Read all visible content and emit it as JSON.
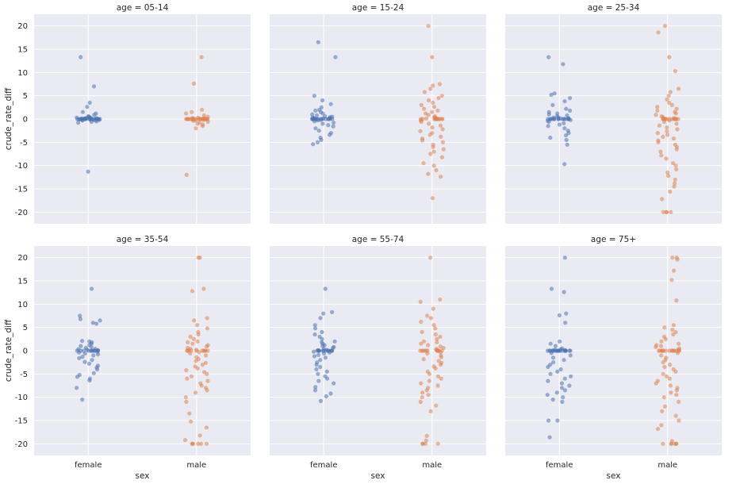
{
  "chart_data": {
    "type": "scatter",
    "subtype": "strip",
    "layout": {
      "rows": 2,
      "cols": 3,
      "sharex": true,
      "sharey": true
    },
    "xlabel": "sex",
    "ylabel": "crude_rate_diff",
    "categories": [
      "female",
      "male"
    ],
    "ylim": [
      -22.5,
      22.5
    ],
    "yticks": [
      "-20",
      "-15",
      "-10",
      "-5",
      "0",
      "5",
      "10",
      "15",
      "20"
    ],
    "grid": true,
    "series_colors": {
      "female": "#4c72b0",
      "male": "#dd8452"
    },
    "facets": [
      {
        "title": "age = 05-14",
        "female": [
          13.3,
          7.0,
          3.5,
          2.6,
          1.5,
          1.2,
          0.9,
          0.6,
          0.5,
          0.4,
          0.3,
          0.3,
          0.2,
          0.2,
          0.2,
          0.1,
          0.1,
          0.1,
          0.0,
          0.0,
          0.0,
          0.0,
          0.0,
          0.0,
          0.0,
          0.0,
          0.0,
          0.0,
          0.0,
          0.0,
          0.0,
          0.0,
          0.0,
          0.0,
          -0.1,
          -0.1,
          -0.1,
          -0.2,
          -0.2,
          -0.3,
          -0.3,
          -0.5,
          -0.6,
          -0.8,
          -11.3
        ],
        "male": [
          13.3,
          7.6,
          2.0,
          1.5,
          1.2,
          0.8,
          0.5,
          0.3,
          0.2,
          0.1,
          0.1,
          0.0,
          0.0,
          0.0,
          0.0,
          0.0,
          0.0,
          0.0,
          0.0,
          0.0,
          0.0,
          0.0,
          0.0,
          0.0,
          0.0,
          0.0,
          0.0,
          0.0,
          0.0,
          0.0,
          0.0,
          -0.1,
          -0.2,
          -0.3,
          -0.4,
          -0.6,
          -0.8,
          -1.0,
          -1.2,
          -1.5,
          -2.0,
          -12.0
        ]
      },
      {
        "title": "age = 15-24",
        "female": [
          16.5,
          13.3,
          5.0,
          4.0,
          3.2,
          2.5,
          2.0,
          1.8,
          1.5,
          1.2,
          1.0,
          0.8,
          0.6,
          0.5,
          0.4,
          0.3,
          0.2,
          0.2,
          0.1,
          0.0,
          0.0,
          0.0,
          0.0,
          0.0,
          0.0,
          0.0,
          0.0,
          0.0,
          0.0,
          0.0,
          0.0,
          0.0,
          0.0,
          0.0,
          0.0,
          -0.2,
          -0.3,
          -0.5,
          -0.8,
          -1.0,
          -1.3,
          -1.6,
          -2.0,
          -2.5,
          -3.0,
          -3.4,
          -4.0,
          -4.5,
          -5.0,
          -5.4
        ],
        "male": [
          20.0,
          13.3,
          7.5,
          7.2,
          6.5,
          5.8,
          5.0,
          4.5,
          4.0,
          3.5,
          3.0,
          2.6,
          2.2,
          1.8,
          1.5,
          1.2,
          0.9,
          0.6,
          0.4,
          0.2,
          0.1,
          0.0,
          0.0,
          0.0,
          0.0,
          0.0,
          0.0,
          0.0,
          0.0,
          0.0,
          0.0,
          0.0,
          0.0,
          -0.3,
          -0.6,
          -1.0,
          -1.4,
          -1.8,
          -2.2,
          -2.6,
          -3.0,
          -3.4,
          -3.8,
          -4.2,
          -4.6,
          -5.0,
          -5.5,
          -6.0,
          -6.5,
          -7.0,
          -7.5,
          -8.2,
          -9.5,
          -10.0,
          -11.0,
          -11.8,
          -12.4,
          -17.0
        ]
      },
      {
        "title": "age = 25-34",
        "female": [
          13.3,
          11.8,
          5.5,
          5.2,
          4.5,
          3.8,
          3.0,
          2.2,
          1.8,
          1.5,
          1.2,
          1.0,
          0.8,
          0.6,
          0.4,
          0.3,
          0.2,
          0.1,
          0.0,
          0.0,
          0.0,
          0.0,
          0.0,
          0.0,
          0.0,
          0.0,
          0.0,
          0.0,
          0.0,
          0.0,
          0.0,
          0.0,
          -0.2,
          -0.4,
          -0.6,
          -0.9,
          -1.2,
          -1.5,
          -2.0,
          -2.5,
          -3.0,
          -3.5,
          -4.0,
          -4.5,
          -5.5,
          -9.7
        ],
        "male": [
          20.0,
          18.6,
          13.3,
          10.3,
          6.5,
          5.8,
          5.0,
          4.2,
          3.5,
          3.0,
          2.6,
          2.2,
          1.8,
          1.5,
          1.2,
          0.9,
          0.6,
          0.4,
          0.2,
          0.0,
          0.0,
          0.0,
          0.0,
          0.0,
          0.0,
          0.0,
          0.0,
          0.0,
          0.0,
          0.0,
          0.0,
          0.0,
          -0.3,
          -0.6,
          -1.0,
          -1.4,
          -1.8,
          -2.2,
          -2.6,
          -3.0,
          -3.4,
          -3.8,
          -4.2,
          -4.6,
          -5.0,
          -5.5,
          -6.0,
          -6.5,
          -7.0,
          -7.8,
          -8.5,
          -9.5,
          -10.0,
          -10.8,
          -11.5,
          -12.2,
          -13.0,
          -13.8,
          -14.5,
          -15.6,
          -17.2,
          -20.0,
          -20.0,
          -20.0,
          -20.0
        ]
      },
      {
        "title": "age = 35-54",
        "female": [
          13.3,
          7.5,
          6.8,
          6.5,
          6.0,
          5.8,
          2.1,
          2.0,
          1.8,
          1.5,
          1.2,
          1.0,
          0.8,
          0.6,
          0.4,
          0.3,
          0.2,
          0.1,
          0.0,
          0.0,
          0.0,
          0.0,
          0.0,
          0.0,
          0.0,
          0.0,
          0.0,
          0.0,
          0.0,
          -0.2,
          -0.4,
          -0.6,
          -0.8,
          -1.0,
          -1.3,
          -1.6,
          -2.0,
          -2.4,
          -2.8,
          -3.2,
          -3.6,
          -4.0,
          -4.8,
          -5.2,
          -5.6,
          -6.0,
          -6.4,
          -8.0,
          -10.5
        ],
        "male": [
          20.0,
          20.0,
          13.3,
          12.8,
          7.0,
          6.5,
          5.5,
          4.8,
          4.0,
          3.5,
          3.0,
          2.5,
          2.0,
          1.8,
          1.5,
          1.2,
          0.9,
          0.6,
          0.4,
          0.2,
          0.0,
          0.0,
          0.0,
          0.0,
          0.0,
          0.0,
          0.0,
          0.0,
          0.0,
          0.0,
          -0.3,
          -0.6,
          -1.0,
          -1.4,
          -1.8,
          -2.2,
          -2.6,
          -3.0,
          -3.4,
          -3.8,
          -4.2,
          -4.6,
          -5.0,
          -5.5,
          -6.0,
          -6.5,
          -7.0,
          -7.5,
          -8.0,
          -8.5,
          -9.0,
          -10.0,
          -11.0,
          -13.5,
          -15.2,
          -16.5,
          -18.2,
          -19.2,
          -20.0,
          -20.0,
          -20.0,
          -20.0,
          -20.0,
          -20.0
        ]
      },
      {
        "title": "age = 55-74",
        "female": [
          13.3,
          8.3,
          8.0,
          7.0,
          5.5,
          4.8,
          4.0,
          3.5,
          3.0,
          2.5,
          2.0,
          1.8,
          1.5,
          1.2,
          1.0,
          0.8,
          0.6,
          0.4,
          0.2,
          0.1,
          0.0,
          0.0,
          0.0,
          0.0,
          0.0,
          0.0,
          0.0,
          0.0,
          0.0,
          0.0,
          0.0,
          0.0,
          0.0,
          -0.2,
          -0.4,
          -0.6,
          -0.9,
          -1.2,
          -1.5,
          -2.0,
          -2.5,
          -3.0,
          -3.5,
          -4.0,
          -4.5,
          -5.0,
          -5.5,
          -6.0,
          -6.5,
          -7.0,
          -7.8,
          -8.5,
          -9.2,
          -9.8,
          -10.8
        ],
        "male": [
          20.0,
          11.0,
          10.5,
          9.0,
          7.5,
          7.0,
          6.2,
          5.5,
          4.8,
          4.0,
          3.5,
          3.0,
          2.5,
          2.0,
          1.8,
          1.5,
          1.2,
          0.9,
          0.6,
          0.4,
          0.2,
          0.0,
          0.0,
          0.0,
          0.0,
          0.0,
          0.0,
          0.0,
          0.0,
          0.0,
          0.0,
          0.0,
          0.0,
          -0.3,
          -0.6,
          -1.0,
          -1.4,
          -1.8,
          -2.2,
          -2.6,
          -3.0,
          -3.4,
          -3.8,
          -4.5,
          -5.0,
          -5.5,
          -6.0,
          -6.5,
          -7.0,
          -7.5,
          -8.0,
          -8.5,
          -9.0,
          -9.5,
          -10.0,
          -11.0,
          -11.8,
          -13.0,
          -18.3,
          -19.3,
          -20.0,
          -20.0,
          -20.0,
          -20.0
        ]
      },
      {
        "title": "age = 75+",
        "female": [
          20.0,
          13.3,
          12.6,
          8.0,
          7.6,
          6.0,
          2.0,
          1.5,
          1.0,
          0.5,
          0.3,
          0.2,
          0.1,
          0.0,
          0.0,
          0.0,
          0.0,
          0.0,
          0.0,
          0.0,
          0.0,
          0.0,
          0.0,
          0.0,
          0.0,
          0.0,
          0.0,
          0.0,
          0.0,
          0.0,
          0.0,
          0.0,
          -0.5,
          -1.0,
          -1.5,
          -2.0,
          -2.5,
          -3.0,
          -3.5,
          -4.0,
          -4.5,
          -5.0,
          -5.5,
          -6.0,
          -6.5,
          -7.0,
          -7.5,
          -8.0,
          -8.5,
          -9.0,
          -9.5,
          -10.0,
          -10.5,
          -11.0,
          -15.0,
          -15.0,
          -18.6
        ],
        "male": [
          20.0,
          20.0,
          19.6,
          17.2,
          15.2,
          10.8,
          5.5,
          5.0,
          4.5,
          4.0,
          3.5,
          3.0,
          2.5,
          2.0,
          1.5,
          1.2,
          1.0,
          0.8,
          0.5,
          0.2,
          0.0,
          0.0,
          0.0,
          0.0,
          0.0,
          0.0,
          0.0,
          0.0,
          0.0,
          0.0,
          0.0,
          0.0,
          0.0,
          0.0,
          0.0,
          -0.5,
          -1.0,
          -1.5,
          -2.0,
          -2.5,
          -3.0,
          -3.5,
          -4.0,
          -4.5,
          -5.0,
          -5.5,
          -6.0,
          -6.5,
          -7.0,
          -7.5,
          -8.0,
          -8.5,
          -9.0,
          -9.5,
          -10.0,
          -11.0,
          -12.0,
          -13.0,
          -14.0,
          -15.0,
          -16.0,
          -16.8,
          -19.4,
          -20.0,
          -20.0,
          -20.0,
          -20.0,
          -20.0,
          -20.0
        ]
      }
    ]
  }
}
